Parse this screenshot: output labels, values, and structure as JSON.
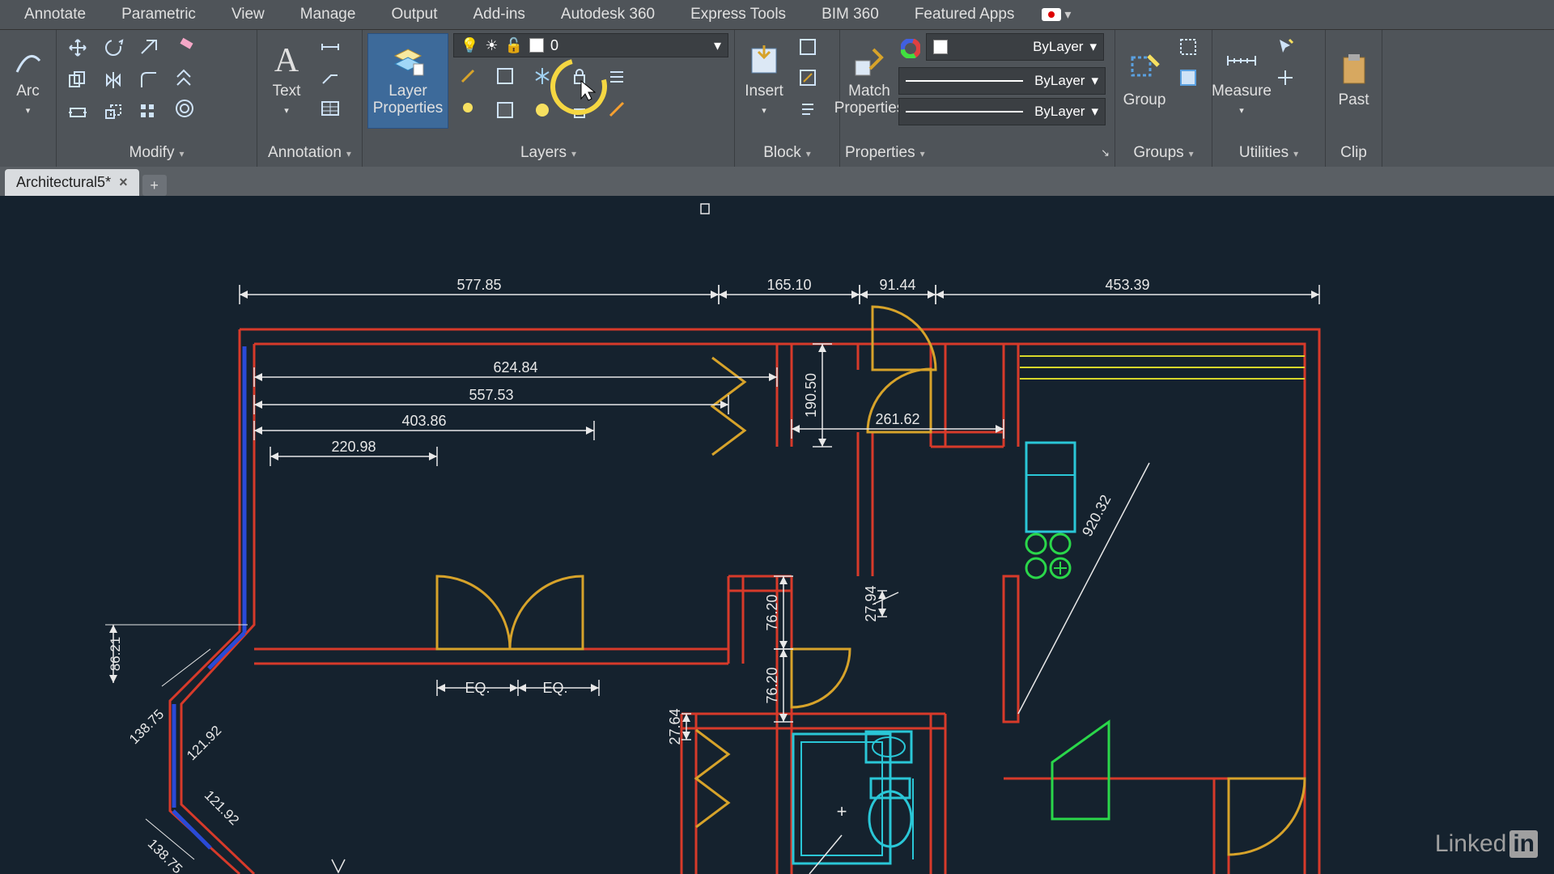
{
  "menubar": {
    "items": [
      "Annotate",
      "Parametric",
      "View",
      "Manage",
      "Output",
      "Add-ins",
      "Autodesk 360",
      "Express Tools",
      "BIM 360",
      "Featured Apps"
    ]
  },
  "ribbon": {
    "panels": {
      "draw": {
        "arc": "Arc"
      },
      "modify": {
        "title": "Modify"
      },
      "annotation": {
        "title": "Annotation",
        "text": "Text"
      },
      "layers": {
        "title": "Layers",
        "layerprops": "Layer\nProperties",
        "current": "0"
      },
      "block": {
        "title": "Block",
        "insert": "Insert"
      },
      "properties": {
        "title": "Properties",
        "match": "Match\nProperties",
        "bylayer1": "ByLayer",
        "bylayer2": "ByLayer",
        "bylayer3": "ByLayer"
      },
      "groups": {
        "title": "Groups",
        "group": "Group"
      },
      "utilities": {
        "title": "Utilities",
        "measure": "Measure"
      },
      "clipboard": {
        "title": "Clip",
        "paste": "Past"
      }
    }
  },
  "tabs": {
    "name": "Architectural5*",
    "new": "+"
  },
  "watermark": {
    "linked": "Linked",
    "in": "in"
  },
  "drawing": {
    "colors": {
      "wall": "#d73a2a",
      "door": "#d7a32a",
      "fixture": "#2ac7d7",
      "appliance": "#2ad74a",
      "window": "#2a4ad7",
      "dim": "#e8e8e8",
      "bg": "#15222e"
    },
    "dims": {
      "d1": "577.85",
      "d2": "165.10",
      "d3": "91.44",
      "d4": "453.39",
      "d5": "624.84",
      "d6": "557.53",
      "d7": "403.86",
      "d8": "220.98",
      "d9": "190.50",
      "d10": "261.62",
      "d11": "76.20",
      "d12": "27.94",
      "d13": "76.20",
      "d14": "27.64",
      "d15": "920.32",
      "d16": "86.21",
      "d17": "138.75",
      "d18": "121.92",
      "d19": "121.92",
      "d20": "138.75",
      "eq": "EQ."
    }
  }
}
